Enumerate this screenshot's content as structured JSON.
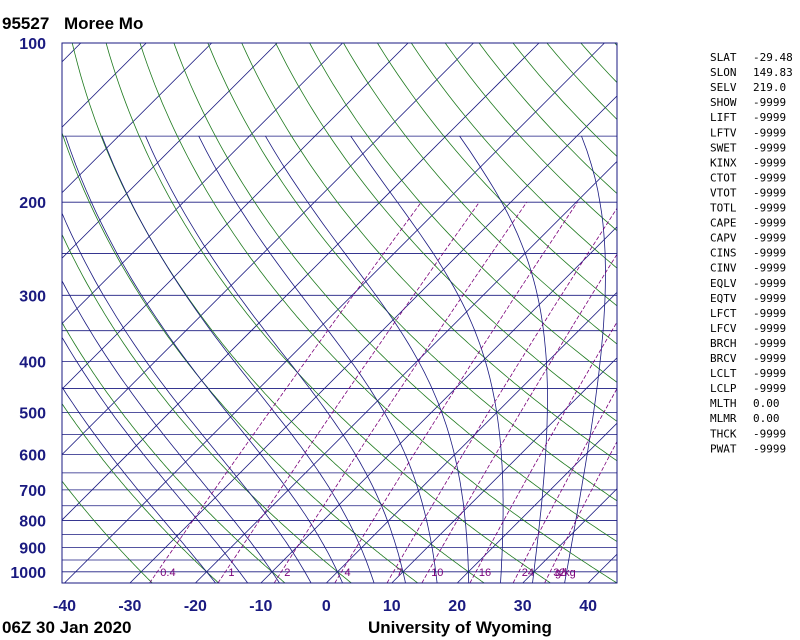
{
  "header": {
    "station_id": "95527",
    "station_name": "Moree Mo"
  },
  "footer": {
    "time_label": "06Z 30 Jan 2020",
    "source": "University of Wyoming"
  },
  "colors": {
    "isobar": "#1a1a80",
    "isotherm": "#1a1a80",
    "dry_adiabat": "#1f7a1f",
    "moist_adiabat": "#1a1a80",
    "mixing_ratio": "#7a007a",
    "frame": "#1a1a80"
  },
  "chart_data": {
    "type": "skew-t",
    "xlabel": "",
    "ylabel": "",
    "xlim": [
      -40,
      45
    ],
    "ylim": [
      1050,
      100
    ],
    "grid": true,
    "pressure_ticks": [
      100,
      200,
      300,
      400,
      500,
      600,
      700,
      800,
      900,
      1000
    ],
    "pressure_tick_labels": [
      "100",
      "200",
      "300",
      "400",
      "500",
      "600",
      "700",
      "800",
      "900",
      "1000"
    ],
    "temperature_ticks": [
      -40,
      -30,
      -20,
      -10,
      0,
      10,
      20,
      30,
      40
    ],
    "temperature_tick_labels": [
      "-40",
      "-30",
      "-20",
      "-10",
      "0",
      "10",
      "20",
      "30",
      "40"
    ],
    "isobars": [
      100,
      150,
      200,
      250,
      300,
      350,
      400,
      450,
      500,
      550,
      600,
      650,
      700,
      750,
      800,
      850,
      900,
      950,
      1000,
      1050
    ],
    "isotherms": [
      -180,
      -170,
      -160,
      -150,
      -140,
      -130,
      -120,
      -110,
      -100,
      -90,
      -80,
      -70,
      -60,
      -50,
      -40,
      -30,
      -20,
      -10,
      0,
      10,
      20,
      30,
      40
    ],
    "dry_adiabats_theta_C": [
      -30,
      -20,
      -10,
      0,
      10,
      20,
      30,
      40,
      50,
      60,
      70,
      80,
      90,
      100,
      110,
      120,
      130,
      140,
      150,
      160,
      170,
      180,
      190,
      200
    ],
    "moist_adiabats_theta_w_C": [
      -20,
      -15,
      -10,
      -5,
      0,
      5,
      10,
      15,
      20,
      25,
      30,
      35
    ],
    "mixing_ratio_lines": [
      0.4,
      1,
      2,
      4,
      7,
      10,
      16,
      24,
      32
    ],
    "mixing_ratio_labels": [
      "0.4",
      "1",
      "2",
      "4",
      "7",
      "10",
      "16",
      "24",
      "32"
    ],
    "mixing_ratio_unit": "g/kg"
  },
  "indices": [
    {
      "key": "SLAT",
      "value": "-29.48"
    },
    {
      "key": "SLON",
      "value": "149.83"
    },
    {
      "key": "SELV",
      "value": "219.0"
    },
    {
      "key": "SHOW",
      "value": "-9999"
    },
    {
      "key": "LIFT",
      "value": "-9999"
    },
    {
      "key": "LFTV",
      "value": "-9999"
    },
    {
      "key": "SWET",
      "value": "-9999"
    },
    {
      "key": "KINX",
      "value": "-9999"
    },
    {
      "key": "CTOT",
      "value": "-9999"
    },
    {
      "key": "VTOT",
      "value": "-9999"
    },
    {
      "key": "TOTL",
      "value": "-9999"
    },
    {
      "key": "CAPE",
      "value": "-9999"
    },
    {
      "key": "CAPV",
      "value": "-9999"
    },
    {
      "key": "CINS",
      "value": "-9999"
    },
    {
      "key": "CINV",
      "value": "-9999"
    },
    {
      "key": "EQLV",
      "value": "-9999"
    },
    {
      "key": "EQTV",
      "value": "-9999"
    },
    {
      "key": "LFCT",
      "value": "-9999"
    },
    {
      "key": "LFCV",
      "value": "-9999"
    },
    {
      "key": "BRCH",
      "value": "-9999"
    },
    {
      "key": "BRCV",
      "value": "-9999"
    },
    {
      "key": "LCLT",
      "value": "-9999"
    },
    {
      "key": "LCLP",
      "value": "-9999"
    },
    {
      "key": "MLTH",
      "value": "0.00"
    },
    {
      "key": "MLMR",
      "value": "0.00"
    },
    {
      "key": "THCK",
      "value": "-9999"
    },
    {
      "key": "PWAT",
      "value": "-9999"
    }
  ]
}
